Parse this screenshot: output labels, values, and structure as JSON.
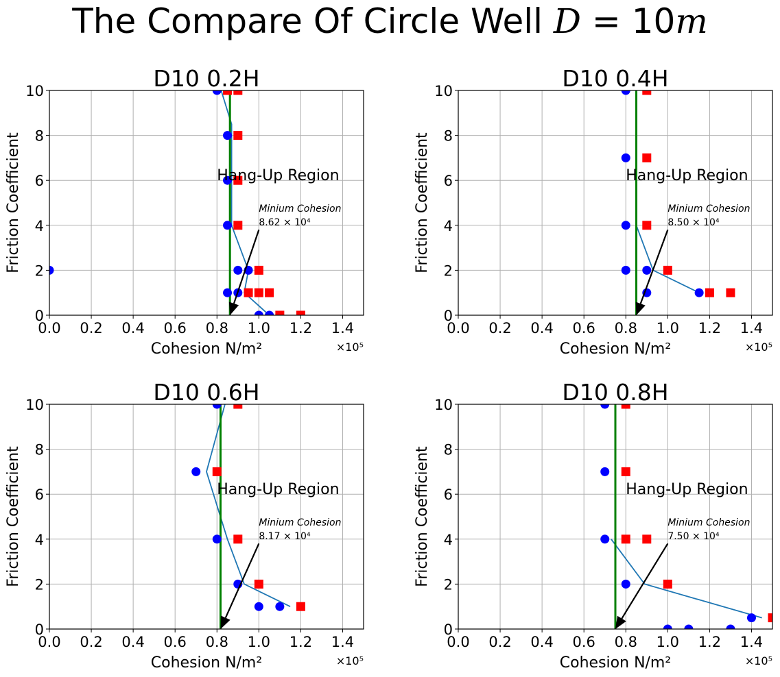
{
  "figure": {
    "title_prefix": "The Compare Of Circle Well ",
    "title_math_var": "D",
    "title_math_rest": " = 10",
    "title_math_unit": "m"
  },
  "colors": {
    "boundary_line": "#1f77b4",
    "min_cohesion_line": "#008000",
    "circle_marker": "#0000ff",
    "square_marker": "#ff0000",
    "grid": "#b0b0b0"
  },
  "chart_data": [
    {
      "type": "scatter",
      "title": "D10 0.2H",
      "xlabel": "Cohesion N/m²",
      "ylabel": "Friction Coefficient",
      "x_multiplier": "×10⁵",
      "xlim": [
        0,
        1.5
      ],
      "ylim": [
        0,
        10
      ],
      "xticks": [
        "0.0",
        "0.2",
        "0.4",
        "0.6",
        "0.8",
        "1.0",
        "1.2",
        "1.4"
      ],
      "yticks": [
        "0",
        "2",
        "4",
        "6",
        "8",
        "10"
      ],
      "grid": true,
      "circles": [
        [
          0.0,
          2
        ],
        [
          0.8,
          10
        ],
        [
          0.85,
          8
        ],
        [
          0.85,
          6
        ],
        [
          0.85,
          4
        ],
        [
          0.85,
          1
        ],
        [
          0.9,
          2
        ],
        [
          0.9,
          1
        ],
        [
          0.95,
          2
        ],
        [
          1.0,
          0
        ],
        [
          1.05,
          0
        ]
      ],
      "squares": [
        [
          0.85,
          10
        ],
        [
          0.9,
          10
        ],
        [
          0.9,
          8
        ],
        [
          0.9,
          6
        ],
        [
          0.9,
          4
        ],
        [
          1.0,
          2
        ],
        [
          0.95,
          1
        ],
        [
          1.0,
          1
        ],
        [
          1.05,
          1
        ],
        [
          1.1,
          0
        ],
        [
          1.2,
          0
        ]
      ],
      "boundary": [
        [
          0.82,
          10
        ],
        [
          0.87,
          8.5
        ],
        [
          0.87,
          4
        ],
        [
          0.95,
          2
        ],
        [
          0.93,
          1
        ],
        [
          1.05,
          0
        ]
      ],
      "min_cohesion": 0.862,
      "region_label": "Hang-Up Region",
      "annotation_title": "Minium Cohesion",
      "annotation_value": "8.62 × 10⁴"
    },
    {
      "type": "scatter",
      "title": "D10 0.4H",
      "xlabel": "Cohesion N/m²",
      "ylabel": "Friction Coefficient",
      "x_multiplier": "×10⁵",
      "xlim": [
        0,
        1.5
      ],
      "ylim": [
        0,
        10
      ],
      "xticks": [
        "0.0",
        "0.2",
        "0.4",
        "0.6",
        "0.8",
        "1.0",
        "1.2",
        "1.4"
      ],
      "yticks": [
        "0",
        "2",
        "4",
        "6",
        "8",
        "10"
      ],
      "grid": true,
      "circles": [
        [
          0.8,
          10
        ],
        [
          0.8,
          7
        ],
        [
          0.8,
          4
        ],
        [
          0.8,
          2
        ],
        [
          0.9,
          2
        ],
        [
          0.9,
          1
        ],
        [
          1.15,
          1
        ]
      ],
      "squares": [
        [
          0.9,
          10
        ],
        [
          0.9,
          7
        ],
        [
          0.9,
          4
        ],
        [
          1.0,
          2
        ],
        [
          1.2,
          1
        ],
        [
          1.3,
          1
        ]
      ],
      "boundary": [
        [
          0.85,
          4
        ],
        [
          0.93,
          2
        ],
        [
          1.15,
          1
        ]
      ],
      "min_cohesion": 0.85,
      "region_label": "Hang-Up Region",
      "annotation_title": "Minium Cohesion",
      "annotation_value": "8.50 × 10⁴"
    },
    {
      "type": "scatter",
      "title": "D10 0.6H",
      "xlabel": "Cohesion N/m²",
      "ylabel": "Friction Coefficient",
      "x_multiplier": "×10⁵",
      "xlim": [
        0,
        1.5
      ],
      "ylim": [
        0,
        10
      ],
      "xticks": [
        "0.0",
        "0.2",
        "0.4",
        "0.6",
        "0.8",
        "1.0",
        "1.2",
        "1.4"
      ],
      "yticks": [
        "0",
        "2",
        "4",
        "6",
        "8",
        "10"
      ],
      "grid": true,
      "circles": [
        [
          0.8,
          10
        ],
        [
          0.7,
          7
        ],
        [
          0.8,
          4
        ],
        [
          0.9,
          2
        ],
        [
          1.0,
          1
        ],
        [
          1.1,
          1
        ]
      ],
      "squares": [
        [
          0.9,
          10
        ],
        [
          0.8,
          7
        ],
        [
          0.9,
          4
        ],
        [
          1.0,
          2
        ],
        [
          1.2,
          1
        ]
      ],
      "boundary": [
        [
          0.85,
          10.4
        ],
        [
          0.75,
          7
        ],
        [
          0.85,
          4
        ],
        [
          0.93,
          2
        ],
        [
          1.15,
          1
        ]
      ],
      "min_cohesion": 0.817,
      "region_label": "Hang-Up Region",
      "annotation_title": "Minium Cohesion",
      "annotation_value": "8.17 × 10⁴"
    },
    {
      "type": "scatter",
      "title": "D10 0.8H",
      "xlabel": "Cohesion N/m²",
      "ylabel": "Friction Coefficient",
      "x_multiplier": "×10⁵",
      "xlim": [
        0,
        1.5
      ],
      "ylim": [
        0,
        10
      ],
      "xticks": [
        "0.0",
        "0.2",
        "0.4",
        "0.6",
        "0.8",
        "1.0",
        "1.2",
        "1.4"
      ],
      "yticks": [
        "0",
        "2",
        "4",
        "6",
        "8",
        "10"
      ],
      "grid": true,
      "circles": [
        [
          0.7,
          10
        ],
        [
          0.7,
          7
        ],
        [
          0.7,
          4
        ],
        [
          0.8,
          2
        ],
        [
          1.0,
          0
        ],
        [
          1.1,
          0
        ],
        [
          1.3,
          0
        ],
        [
          1.4,
          0.5
        ]
      ],
      "squares": [
        [
          0.8,
          10
        ],
        [
          0.8,
          7
        ],
        [
          0.8,
          4
        ],
        [
          0.9,
          4
        ],
        [
          1.0,
          2
        ],
        [
          1.5,
          0.5
        ]
      ],
      "boundary": [
        [
          0.73,
          4
        ],
        [
          0.89,
          2
        ],
        [
          1.45,
          0.5
        ]
      ],
      "min_cohesion": 0.75,
      "region_label": "Hang-Up Region",
      "annotation_title": "Minium Cohesion",
      "annotation_value": "7.50 × 10⁴"
    }
  ]
}
